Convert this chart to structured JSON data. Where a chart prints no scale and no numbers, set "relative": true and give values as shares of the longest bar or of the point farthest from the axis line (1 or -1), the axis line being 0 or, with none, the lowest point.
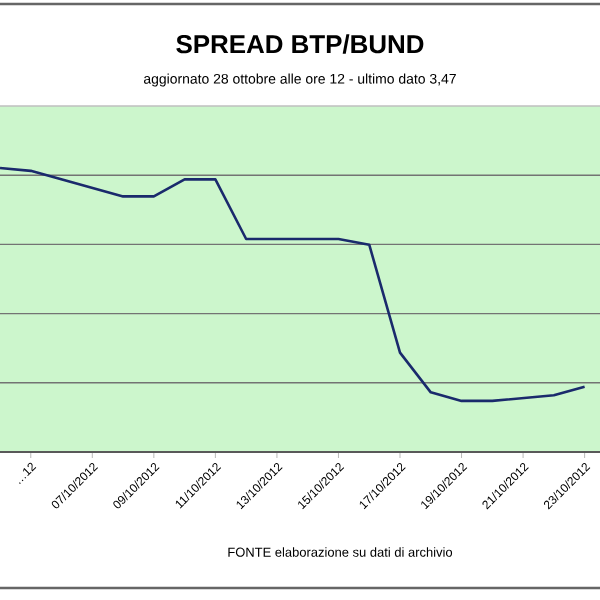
{
  "chart_data": {
    "type": "line",
    "title": "SPREAD  BTP/BUND",
    "subtitle": "aggiornato 28 ottobre alle ore 12 - ultimo dato 3,47",
    "annotations": [
      "FONTE elaborazione su dati di archivio"
    ],
    "relative": true,
    "grid": "y",
    "x": [
      "2012-10-04",
      "2012-10-05",
      "2012-10-08",
      "2012-10-09",
      "2012-10-10",
      "2012-10-11",
      "2012-10-12",
      "2012-10-15",
      "2012-10-16",
      "2012-10-17",
      "2012-10-18",
      "2012-10-19",
      "2012-10-20",
      "2012-10-22",
      "2012-10-23"
    ],
    "series": [
      {
        "color": "#1a2a6c",
        "values": [
          1.0,
          0.99,
          0.9,
          0.9,
          0.96,
          0.96,
          0.75,
          0.75,
          0.73,
          0.35,
          0.21,
          0.18,
          0.18,
          0.2,
          0.23
        ]
      }
    ],
    "xlim": [
      "2012-10-04",
      "2012-10-23T12:00"
    ],
    "xticks": [
      {
        "value": "2012-10-05",
        "label": "…12"
      },
      {
        "value": "2012-10-07",
        "label": "07/10/2012"
      },
      {
        "value": "2012-10-09",
        "label": "09/10/2012"
      },
      {
        "value": "2012-10-11",
        "label": "11/10/2012"
      },
      {
        "value": "2012-10-13",
        "label": "13/10/2012"
      },
      {
        "value": "2012-10-15",
        "label": "15/10/2012"
      },
      {
        "value": "2012-10-17",
        "label": "17/10/2012"
      },
      {
        "value": "2012-10-19",
        "label": "19/10/2012"
      },
      {
        "value": "2012-10-21",
        "label": "21/10/2012"
      },
      {
        "value": "2012-10-23",
        "label": "23/10/2012"
      }
    ]
  }
}
